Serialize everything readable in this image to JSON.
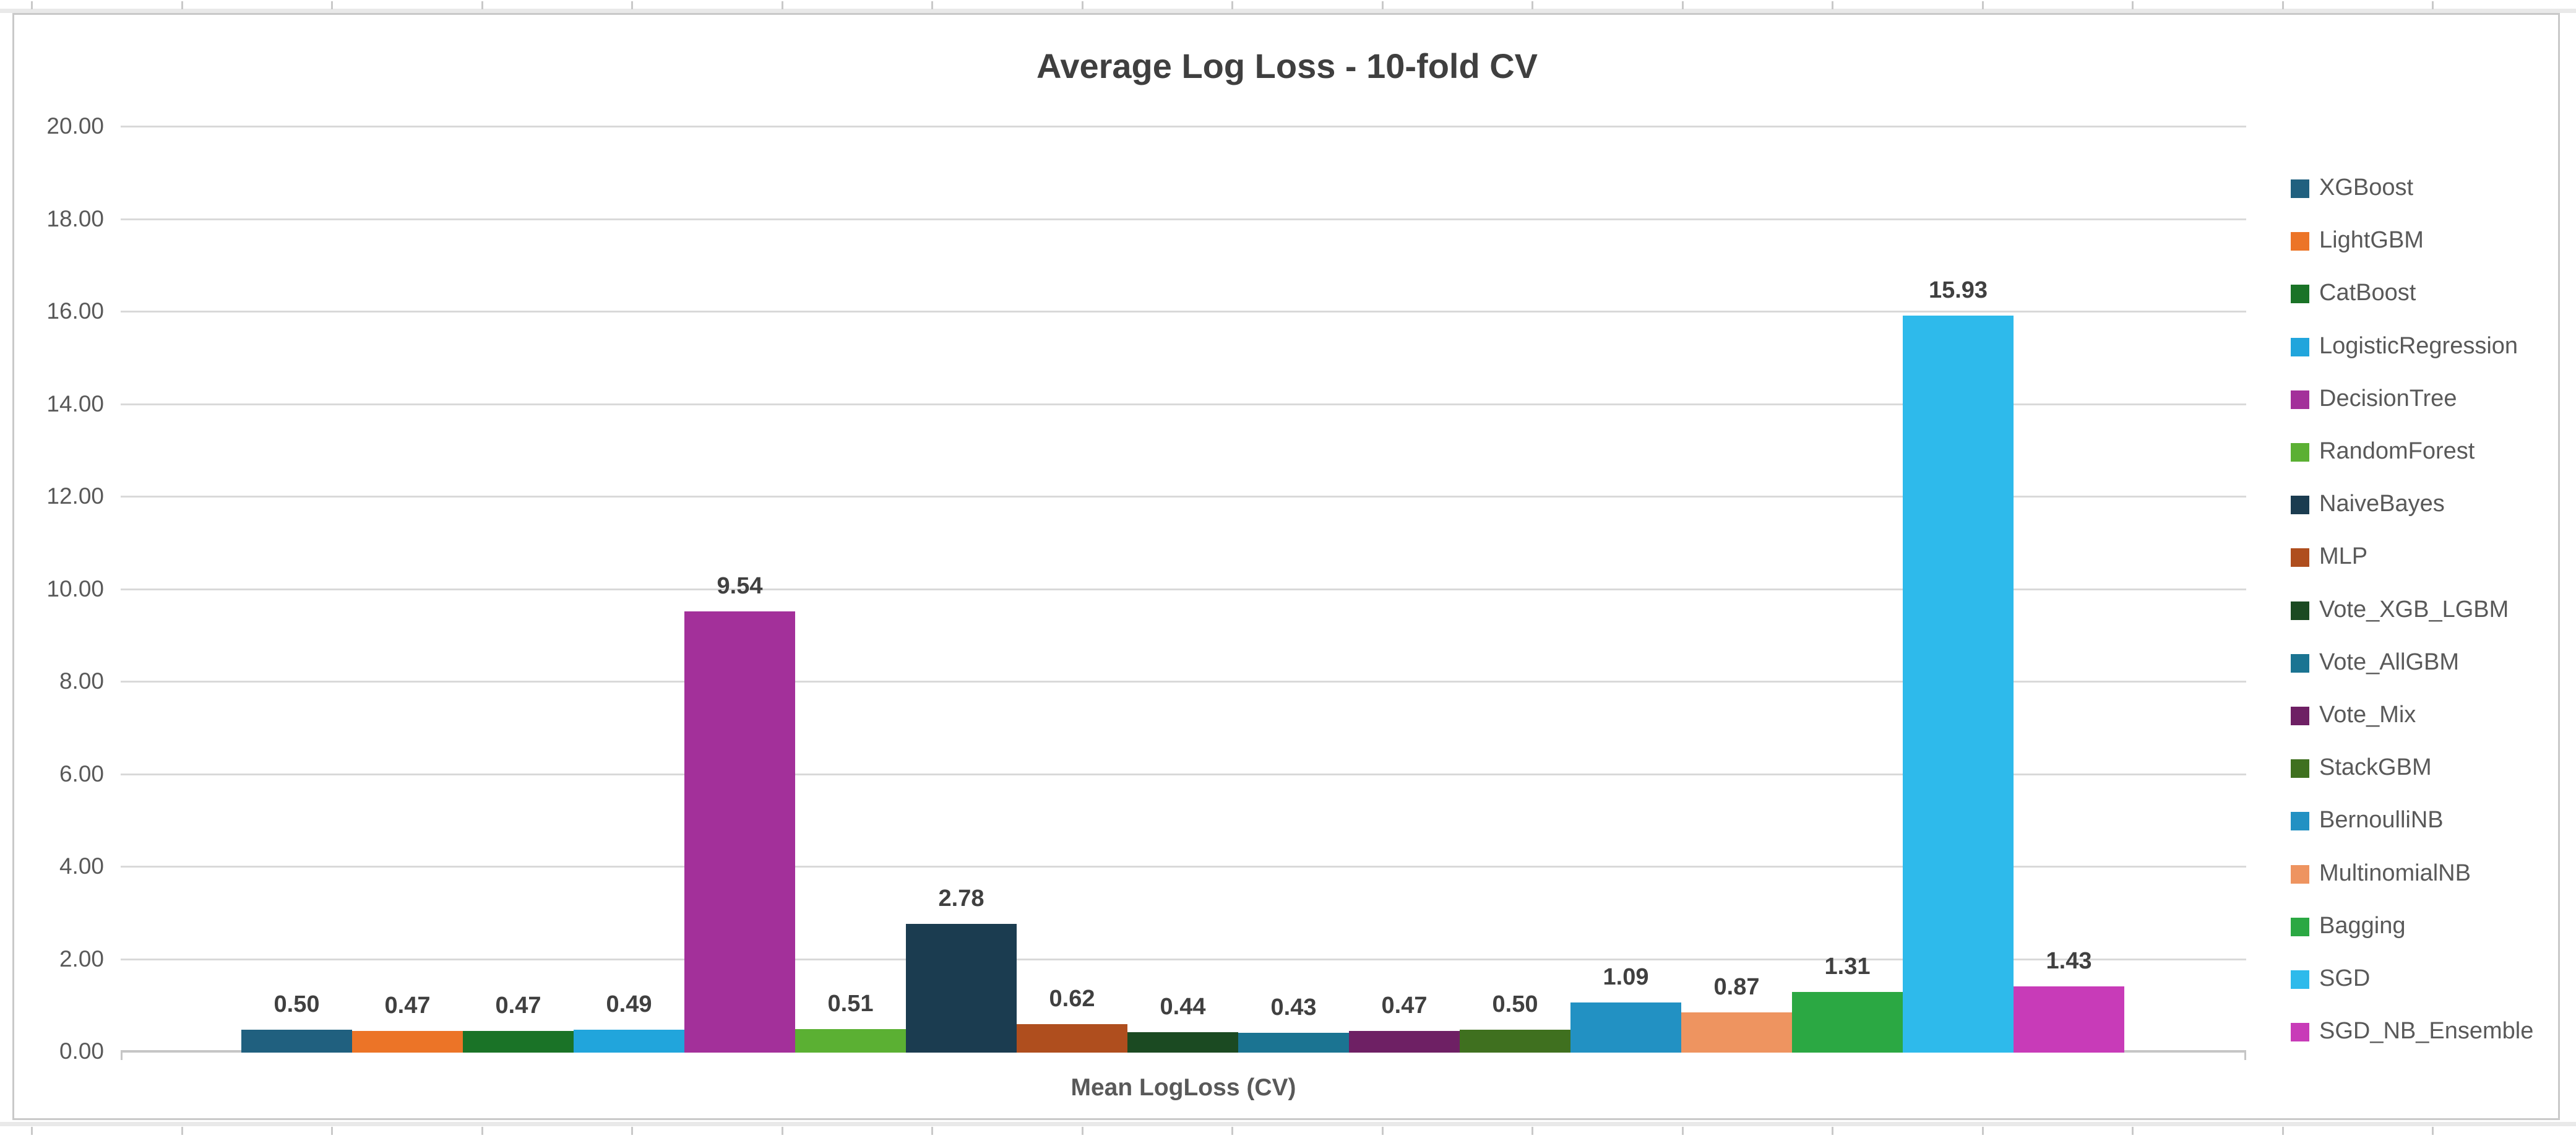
{
  "chart_data": {
    "type": "bar",
    "title": "Average Log Loss - 10-fold CV",
    "xlabel": "Mean LogLoss (CV)",
    "ylabel": "",
    "ylim": [
      0,
      20
    ],
    "ytick_step": 2,
    "yticks": [
      "0.00",
      "2.00",
      "4.00",
      "6.00",
      "8.00",
      "10.00",
      "12.00",
      "14.00",
      "16.00",
      "18.00",
      "20.00"
    ],
    "grid": true,
    "legend_position": "right",
    "value_labels_shown": true,
    "series": [
      {
        "name": "XGBoost",
        "value": 0.5,
        "label": "0.50",
        "color": "#20607F"
      },
      {
        "name": "LightGBM",
        "value": 0.47,
        "label": "0.47",
        "color": "#EC7427"
      },
      {
        "name": "CatBoost",
        "value": 0.47,
        "label": "0.47",
        "color": "#1A7327"
      },
      {
        "name": "LogisticRegression",
        "value": 0.49,
        "label": "0.49",
        "color": "#21A5DC"
      },
      {
        "name": "DecisionTree",
        "value": 9.54,
        "label": "9.54",
        "color": "#A3309A"
      },
      {
        "name": "RandomForest",
        "value": 0.51,
        "label": "0.51",
        "color": "#5BB033"
      },
      {
        "name": "NaiveBayes",
        "value": 2.78,
        "label": "2.78",
        "color": "#1B3C50"
      },
      {
        "name": "MLP",
        "value": 0.62,
        "label": "0.62",
        "color": "#AF4E1E"
      },
      {
        "name": "Vote_XGB_LGBM",
        "value": 0.44,
        "label": "0.44",
        "color": "#1B4A22"
      },
      {
        "name": "Vote_AllGBM",
        "value": 0.43,
        "label": "0.43",
        "color": "#1B7492"
      },
      {
        "name": "Vote_Mix",
        "value": 0.47,
        "label": "0.47",
        "color": "#6E2064"
      },
      {
        "name": "StackGBM",
        "value": 0.5,
        "label": "0.50",
        "color": "#3F701F"
      },
      {
        "name": "BernoulliNB",
        "value": 1.09,
        "label": "1.09",
        "color": "#2291C3"
      },
      {
        "name": "MultinomialNB",
        "value": 0.87,
        "label": "0.87",
        "color": "#EE9460"
      },
      {
        "name": "Bagging",
        "value": 1.31,
        "label": "1.31",
        "color": "#2BA843"
      },
      {
        "name": "SGD",
        "value": 15.93,
        "label": "15.93",
        "color": "#2EBAEB"
      },
      {
        "name": "SGD_NB_Ensemble",
        "value": 1.43,
        "label": "1.43",
        "color": "#C83BB8"
      }
    ]
  },
  "frame": {
    "border_color": "#c9c9c9",
    "gridline_color": "#d9d9d9",
    "axis_color": "#c6c6c6",
    "title_color": "#3f3f3f",
    "axis_text_color": "#595959",
    "value_label_color": "#404040"
  }
}
